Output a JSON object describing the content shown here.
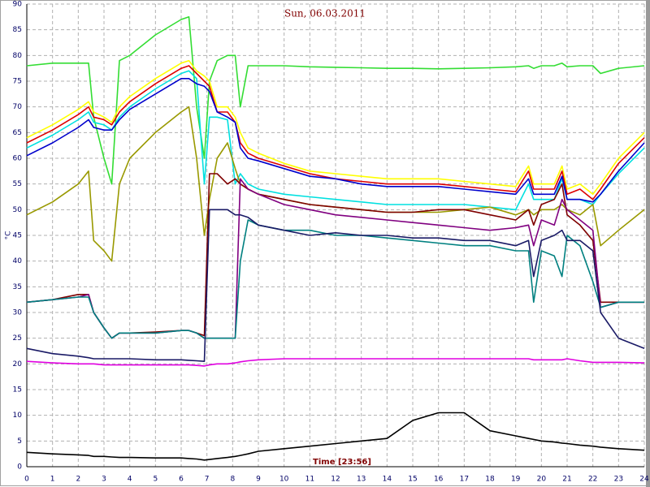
{
  "chart_data": {
    "type": "line",
    "title": "Sun, 06.03.2011",
    "y_label": "°C",
    "x_label": "Time [23:56]",
    "x": [
      0,
      1,
      2,
      2.4,
      2.6,
      3,
      3.3,
      3.6,
      4,
      5,
      6,
      6.3,
      6.6,
      6.9,
      7.1,
      7.4,
      7.8,
      8.1,
      8.3,
      8.6,
      9,
      10,
      11,
      12,
      13,
      14,
      15,
      16,
      17,
      18,
      19,
      19.5,
      19.7,
      20,
      20.5,
      20.8,
      21,
      21.5,
      22,
      22.3,
      23,
      24
    ],
    "xlim": [
      0,
      24
    ],
    "xticks": [
      0,
      1,
      2,
      3,
      4,
      5,
      6,
      7,
      8,
      9,
      10,
      11,
      12,
      13,
      14,
      15,
      16,
      17,
      18,
      19,
      20,
      21,
      22,
      23,
      24
    ],
    "ylim": [
      0,
      90
    ],
    "yticks": [
      0,
      5,
      10,
      15,
      20,
      25,
      30,
      35,
      40,
      45,
      50,
      55,
      60,
      65,
      70,
      75,
      80,
      85,
      90
    ],
    "grid": true,
    "series": [
      {
        "color": "#33dd33",
        "values": [
          78,
          78.5,
          78.5,
          78.5,
          68,
          60,
          55,
          79,
          80,
          84,
          87,
          87.5,
          70,
          60,
          75,
          79,
          80,
          80,
          70,
          78,
          78,
          78,
          77.8,
          77.7,
          77.6,
          77.5,
          77.5,
          77.4,
          77.5,
          77.6,
          77.8,
          78,
          77.5,
          78,
          78,
          78.5,
          77.8,
          78,
          78,
          76.5,
          77.5,
          78
        ]
      },
      {
        "color": "#ffff00",
        "values": [
          64,
          66.5,
          69.5,
          71,
          69,
          68,
          67,
          70,
          72,
          75.5,
          78.5,
          79,
          77,
          76,
          75,
          70,
          70,
          68,
          65,
          62,
          61,
          59,
          57.5,
          57,
          56.5,
          56,
          56,
          56,
          55.5,
          55,
          54.5,
          58.5,
          55,
          55,
          55,
          58.5,
          54,
          55,
          53,
          55,
          60,
          65
        ]
      },
      {
        "color": "#dd0000",
        "values": [
          63,
          65.5,
          68.5,
          70,
          68,
          67.5,
          66.5,
          69,
          71,
          74.5,
          77.5,
          78,
          76.5,
          75,
          74,
          69,
          69,
          67,
          63,
          61,
          60,
          58.5,
          57,
          56,
          55.5,
          55,
          55,
          55,
          54.5,
          54,
          53.5,
          57.5,
          54,
          54,
          54,
          57.5,
          53,
          54,
          52,
          54,
          59,
          64
        ]
      },
      {
        "color": "#00e0e0",
        "values": [
          62,
          64.5,
          67.5,
          69,
          67,
          66.5,
          65.5,
          68,
          70,
          73.5,
          76.5,
          77,
          75.5,
          55,
          68,
          68,
          67.5,
          55,
          57,
          55,
          54,
          53,
          52.5,
          52,
          51.5,
          51,
          51,
          51,
          51,
          50.5,
          50,
          55,
          52,
          52,
          52,
          56,
          52,
          52,
          51,
          53,
          57,
          62
        ]
      },
      {
        "color": "#0000cc",
        "values": [
          60.5,
          63,
          66,
          67.5,
          66,
          65.5,
          65.5,
          67.5,
          69.5,
          72.5,
          75.5,
          75.5,
          74.5,
          74,
          73,
          69,
          68,
          67,
          62,
          60,
          59.5,
          58,
          56.5,
          56,
          55,
          54.5,
          54.5,
          54.5,
          54,
          53.5,
          53,
          56,
          53,
          53,
          53,
          56.5,
          52,
          52,
          51.5,
          53,
          57.5,
          63
        ]
      },
      {
        "color": "#999900",
        "values": [
          49,
          51.5,
          55,
          57.5,
          44,
          42,
          40,
          55,
          60,
          65,
          69,
          70,
          60,
          45,
          52,
          60,
          63,
          58,
          55,
          54,
          53,
          52,
          51,
          50.5,
          50,
          49.5,
          49.5,
          49.5,
          50,
          50.5,
          49,
          50,
          49,
          50,
          50,
          51,
          50,
          49,
          51,
          43,
          46,
          50
        ]
      },
      {
        "color": "#7f0000",
        "values": [
          32,
          32.5,
          33.5,
          33.5,
          30,
          27,
          25,
          26,
          26,
          26.2,
          26.5,
          26.5,
          26,
          25.5,
          57,
          57,
          55,
          56,
          55,
          54,
          53,
          52,
          51,
          50.5,
          50,
          49.5,
          49.5,
          50,
          50,
          49,
          48,
          50,
          47,
          51,
          52,
          55,
          49,
          47,
          44,
          32,
          32,
          32
        ]
      },
      {
        "color": "#800080",
        "values": [
          32,
          32.5,
          33,
          33.5,
          30,
          27,
          25,
          26,
          26,
          26,
          26.5,
          26.5,
          26,
          25,
          25,
          25,
          25,
          25,
          56,
          54,
          53,
          51,
          50,
          49,
          48.5,
          48,
          47.5,
          47,
          46.5,
          46,
          46.5,
          47,
          43,
          48,
          47,
          52,
          50,
          48,
          46,
          31,
          32,
          32
        ]
      },
      {
        "color": "#008080",
        "values": [
          32,
          32.5,
          33,
          33,
          30,
          27,
          25,
          26,
          26,
          26,
          26.5,
          26.5,
          26,
          25,
          25,
          25,
          25,
          25,
          40,
          48,
          47,
          46,
          46,
          45,
          45,
          44.5,
          44,
          43.5,
          43,
          43,
          42,
          42,
          32,
          42,
          41,
          37,
          45,
          43,
          36,
          31,
          32,
          32
        ]
      },
      {
        "color": "#1a1a66",
        "values": [
          23,
          22,
          21.5,
          21.2,
          21,
          21,
          21,
          21,
          21,
          20.8,
          20.8,
          20.7,
          20.6,
          20.5,
          50,
          50,
          50,
          49,
          49,
          48.5,
          47,
          46,
          45,
          45.5,
          45,
          45,
          44.5,
          44.5,
          44,
          44,
          43,
          44,
          37,
          44,
          45,
          46,
          44,
          44,
          42,
          30,
          25,
          23
        ]
      },
      {
        "color": "#e000e0",
        "values": [
          20.5,
          20.2,
          20,
          20,
          20,
          19.8,
          19.8,
          19.8,
          19.8,
          19.8,
          19.8,
          19.8,
          19.7,
          19.6,
          19.8,
          20,
          20,
          20.2,
          20.4,
          20.6,
          20.8,
          21,
          21,
          21,
          21,
          21,
          21,
          21,
          21,
          21,
          21,
          21,
          20.8,
          20.8,
          20.8,
          20.8,
          21,
          20.6,
          20.3,
          20.3,
          20.3,
          20.2
        ]
      },
      {
        "color": "#000000",
        "values": [
          2.8,
          2.5,
          2.3,
          2.2,
          2,
          2,
          1.9,
          1.8,
          1.8,
          1.7,
          1.7,
          1.6,
          1.5,
          1.3,
          1.4,
          1.6,
          1.8,
          2,
          2.2,
          2.5,
          3,
          3.5,
          4,
          4.5,
          5,
          5.5,
          9,
          10.5,
          10.5,
          7,
          6,
          5.5,
          5.3,
          5,
          4.8,
          4.6,
          4.5,
          4.2,
          4,
          3.8,
          3.5,
          3.2
        ]
      }
    ]
  }
}
